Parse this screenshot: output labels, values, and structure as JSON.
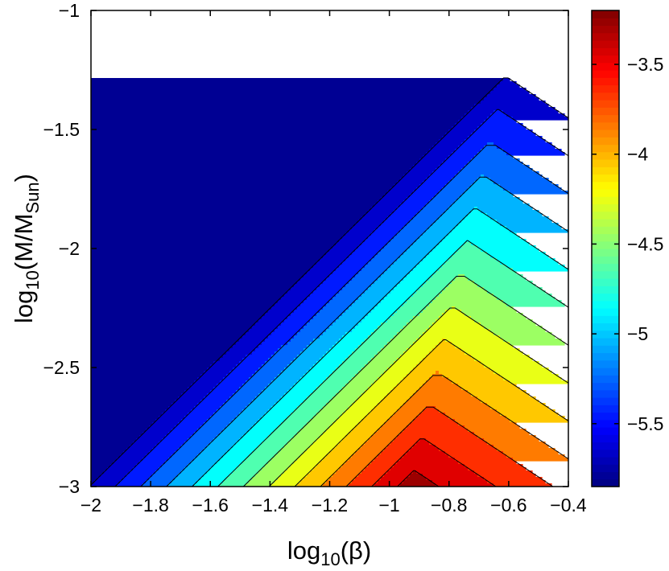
{
  "chart_data": {
    "type": "contour",
    "title": "",
    "xlabel": {
      "base": "log",
      "sub": "10",
      "arg": "(β)"
    },
    "ylabel": {
      "base": "log",
      "sub": "10",
      "mid": "(M/M",
      "sub2": "Sun",
      "end": ")"
    },
    "xlim": [
      -2,
      -0.4
    ],
    "ylim": [
      -3,
      -1
    ],
    "x_ticks": [
      -2,
      -1.8,
      -1.6,
      -1.4,
      -1.2,
      -1,
      -0.8,
      -0.6,
      -0.4
    ],
    "x_tick_labels": [
      "−2",
      "−1.8",
      "−1.6",
      "−1.4",
      "−1.2",
      "−1",
      "−0.8",
      "−0.6",
      "−0.4"
    ],
    "y_ticks": [
      -3,
      -2.5,
      -2,
      -1.5,
      -1
    ],
    "y_tick_labels": [
      "−3",
      "−2.5",
      "−2",
      "−1.5",
      "−1"
    ],
    "colorbar": {
      "range": [
        -5.85,
        -3.2
      ],
      "colormap": "jet",
      "ticks": [
        -5.5,
        -5,
        -4.5,
        -4,
        -3.5
      ],
      "tick_labels": [
        "−5.5",
        "−5",
        "−4.5",
        "−4",
        "−3.5"
      ]
    },
    "contour_levels": [
      -5.75,
      -5.55,
      -5.35,
      -5.15,
      -4.95,
      -4.75,
      -4.55,
      -4.35,
      -4.15,
      -3.95,
      -3.75,
      -3.55,
      -3.35
    ],
    "ridge": [
      {
        "y": -3.0,
        "x": -0.93
      },
      {
        "y": -1.0,
        "x": -0.56
      }
    ],
    "peak_value": -3.25,
    "description_values": {
      "slope_left_of_ridge": 1.5,
      "slope_right_of_ridge": 0.55,
      "min_corner": [
        -2,
        -1
      ]
    }
  }
}
